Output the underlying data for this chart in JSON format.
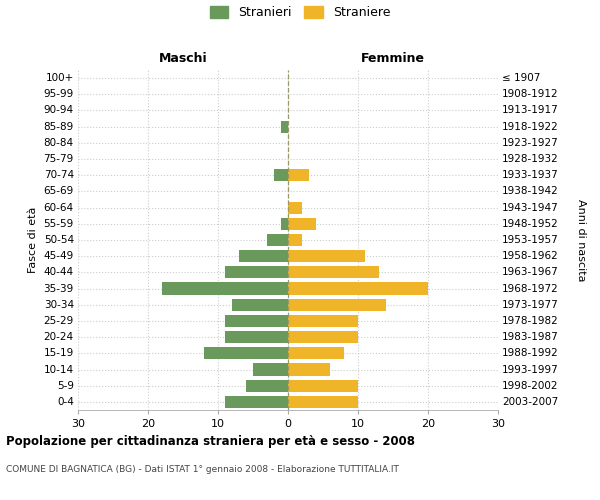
{
  "age_groups": [
    "0-4",
    "5-9",
    "10-14",
    "15-19",
    "20-24",
    "25-29",
    "30-34",
    "35-39",
    "40-44",
    "45-49",
    "50-54",
    "55-59",
    "60-64",
    "65-69",
    "70-74",
    "75-79",
    "80-84",
    "85-89",
    "90-94",
    "95-99",
    "100+"
  ],
  "birth_years": [
    "2003-2007",
    "1998-2002",
    "1993-1997",
    "1988-1992",
    "1983-1987",
    "1978-1982",
    "1973-1977",
    "1968-1972",
    "1963-1967",
    "1958-1962",
    "1953-1957",
    "1948-1952",
    "1943-1947",
    "1938-1942",
    "1933-1937",
    "1928-1932",
    "1923-1927",
    "1918-1922",
    "1913-1917",
    "1908-1912",
    "≤ 1907"
  ],
  "males": [
    9,
    6,
    5,
    12,
    9,
    9,
    8,
    18,
    9,
    7,
    3,
    1,
    0,
    0,
    2,
    0,
    0,
    1,
    0,
    0,
    0
  ],
  "females": [
    10,
    10,
    6,
    8,
    10,
    10,
    14,
    20,
    13,
    11,
    2,
    4,
    2,
    0,
    3,
    0,
    0,
    0,
    0,
    0,
    0
  ],
  "male_color": "#6a9a5b",
  "female_color": "#f0b429",
  "grid_color": "#cccccc",
  "title": "Popolazione per cittadinanza straniera per età e sesso - 2008",
  "subtitle": "COMUNE DI BAGNATICA (BG) - Dati ISTAT 1° gennaio 2008 - Elaborazione TUTTITALIA.IT",
  "xlabel_left": "Maschi",
  "xlabel_right": "Femmine",
  "ylabel_left": "Fasce di età",
  "ylabel_right": "Anni di nascita",
  "legend_male": "Stranieri",
  "legend_female": "Straniere",
  "xlim": 30
}
